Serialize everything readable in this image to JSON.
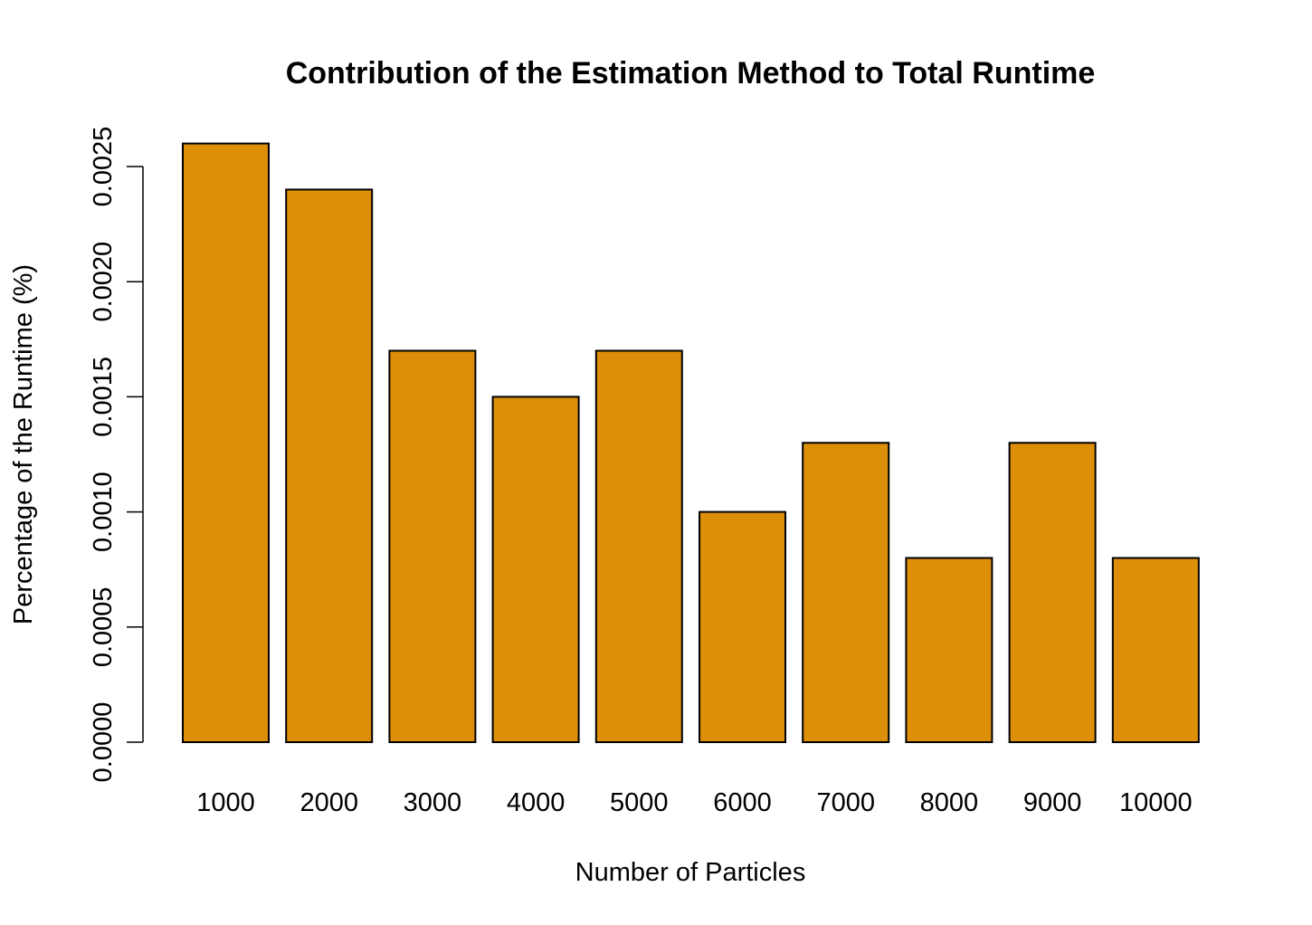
{
  "chart_data": {
    "type": "bar",
    "title": "Contribution of the Estimation Method to Total Runtime",
    "xlabel": "Number of Particles",
    "ylabel": "Percentage of the Runtime (%)",
    "categories": [
      "1000",
      "2000",
      "3000",
      "4000",
      "5000",
      "6000",
      "7000",
      "8000",
      "9000",
      "10000"
    ],
    "values": [
      0.0026,
      0.0024,
      0.0017,
      0.0015,
      0.0017,
      0.001,
      0.0013,
      0.0008,
      0.0013,
      0.0008
    ],
    "ylim": [
      0,
      0.0026
    ],
    "yticks": [
      0,
      0.0005,
      0.001,
      0.0015,
      0.002,
      0.0025
    ],
    "ytick_labels": [
      "0.0000",
      "0.0005",
      "0.0010",
      "0.0015",
      "0.0020",
      "0.0025"
    ],
    "bar_color": "#DE8F09",
    "grid": false,
    "legend": "none"
  }
}
